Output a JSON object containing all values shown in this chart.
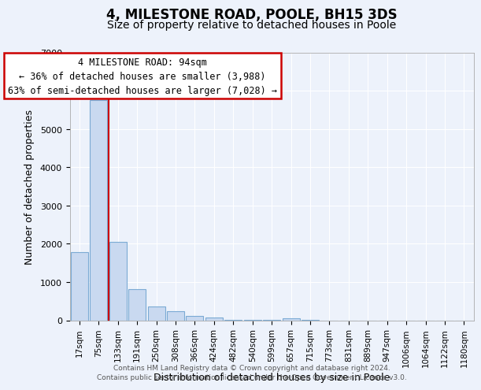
{
  "title": "4, MILESTONE ROAD, POOLE, BH15 3DS",
  "subtitle": "Size of property relative to detached houses in Poole",
  "xlabel": "Distribution of detached houses by size in Poole",
  "ylabel": "Number of detached properties",
  "bar_labels": [
    "17sqm",
    "75sqm",
    "133sqm",
    "191sqm",
    "250sqm",
    "308sqm",
    "366sqm",
    "424sqm",
    "482sqm",
    "540sqm",
    "599sqm",
    "657sqm",
    "715sqm",
    "773sqm",
    "831sqm",
    "889sqm",
    "947sqm",
    "1006sqm",
    "1064sqm",
    "1122sqm",
    "1180sqm"
  ],
  "bar_values": [
    1780,
    5750,
    2060,
    820,
    365,
    235,
    115,
    80,
    20,
    20,
    20,
    60,
    20,
    0,
    0,
    0,
    0,
    0,
    0,
    0,
    0
  ],
  "bar_color": "#c9d9f0",
  "bar_edge_color": "#7baad4",
  "vline_x": 1.5,
  "vline_color": "#cc0000",
  "ylim": [
    0,
    7000
  ],
  "yticks": [
    0,
    1000,
    2000,
    3000,
    4000,
    5000,
    6000,
    7000
  ],
  "annotation_line1": "4 MILESTONE ROAD: 94sqm",
  "annotation_line2": "← 36% of detached houses are smaller (3,988)",
  "annotation_line3": "63% of semi-detached houses are larger (7,028) →",
  "footer1": "Contains HM Land Registry data © Crown copyright and database right 2024.",
  "footer2": "Contains public sector information licensed under the Open Government Licence v3.0.",
  "bg_color": "#edf2fb",
  "plot_bg_color": "#edf2fb",
  "grid_color": "#ffffff",
  "title_fontsize": 12,
  "subtitle_fontsize": 10,
  "xlabel_fontsize": 9,
  "ylabel_fontsize": 9
}
